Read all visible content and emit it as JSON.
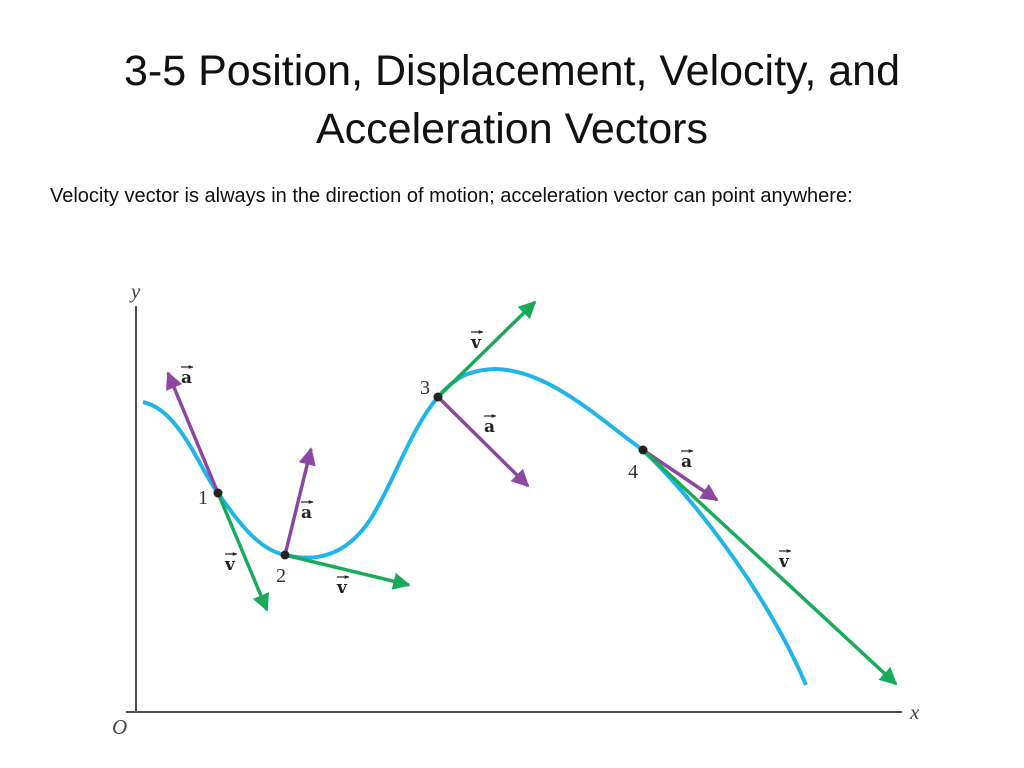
{
  "slide": {
    "title": "3-5 Position, Displacement, Velocity, and Acceleration Vectors",
    "body": "Velocity vector is always in the direction of motion; acceleration vector can point anywhere:"
  },
  "diagram": {
    "axes": {
      "y_label": "y",
      "x_label": "x",
      "origin_label": "O"
    },
    "points": [
      {
        "label": "1",
        "velocity_label": "v",
        "acceleration_label": "a"
      },
      {
        "label": "2",
        "velocity_label": "v",
        "acceleration_label": "a"
      },
      {
        "label": "3",
        "velocity_label": "v",
        "acceleration_label": "a"
      },
      {
        "label": "4",
        "velocity_label": "v",
        "acceleration_label": "a"
      }
    ],
    "colors": {
      "path": "#1fb5e8",
      "velocity": "#1aab5a",
      "acceleration": "#8c47a3",
      "axis": "#4d4d4d",
      "point": "#222222"
    }
  }
}
